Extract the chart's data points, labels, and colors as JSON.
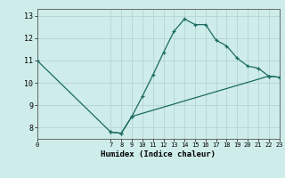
{
  "xlabel": "Humidex (Indice chaleur)",
  "background_color": "#ceecea",
  "grid_color": "#b8d8d5",
  "line_color": "#1a6b60",
  "xlim": [
    0,
    23
  ],
  "ylim": [
    7.5,
    13.3
  ],
  "xticks": [
    0,
    7,
    8,
    9,
    10,
    11,
    12,
    13,
    14,
    15,
    16,
    17,
    18,
    19,
    20,
    21,
    22,
    23
  ],
  "yticks": [
    8,
    9,
    10,
    11,
    12,
    13
  ],
  "line1_x": [
    0,
    7,
    8,
    9,
    10,
    11,
    12,
    13,
    14,
    15,
    16,
    17,
    18,
    19,
    20,
    21,
    22,
    23
  ],
  "line1_y": [
    11.0,
    7.8,
    7.75,
    8.5,
    9.4,
    10.35,
    11.35,
    12.3,
    12.85,
    12.6,
    12.6,
    11.9,
    11.65,
    11.1,
    10.75,
    10.65,
    10.3,
    10.25
  ],
  "line2_x": [
    7,
    8,
    9,
    22,
    23
  ],
  "line2_y": [
    7.8,
    7.75,
    8.5,
    10.3,
    10.25
  ]
}
